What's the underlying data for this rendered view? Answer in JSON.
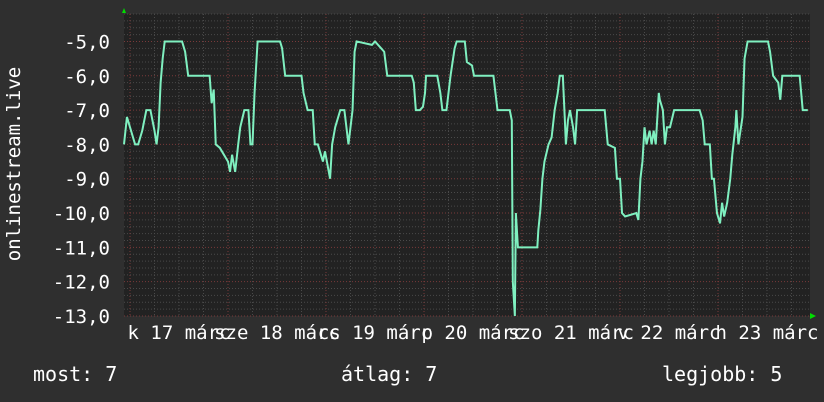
{
  "chart_data": {
    "type": "line",
    "ylabel": "onlinestream.live",
    "ylim": [
      -13.0,
      -4.2
    ],
    "xlim": [
      "16 22:30",
      "23 22:30"
    ],
    "yticks": [
      "-5,0",
      "-6,0",
      "-7,0",
      "-8,0",
      "-9,0",
      "-10,0",
      "-11,0",
      "-12,0",
      "-13,0"
    ],
    "ytick_values": [
      -5,
      -6,
      -7,
      -8,
      -9,
      -10,
      -11,
      -12,
      -13
    ],
    "xticks": [
      {
        "label": "k 17 márc",
        "day": "17 12:00"
      },
      {
        "label": "sze 18 márc",
        "day": "18 12:00"
      },
      {
        "label": "cs 19 márc",
        "day": "19 12:00"
      },
      {
        "label": "p 20 márc",
        "day": "20 12:00"
      },
      {
        "label": "szo 21 márc",
        "day": "21 12:00"
      },
      {
        "label": "v 22 márc",
        "day": "22 12:00"
      },
      {
        "label": "h 23 márc",
        "day": "23 12:00"
      }
    ],
    "grid": true,
    "line_color": "#7ff0c0",
    "series": [
      {
        "points": [
          [
            "16 22:30",
            -8
          ],
          [
            "16 23:15",
            -7.2
          ],
          [
            "17 00:00",
            -7.5
          ],
          [
            "17 01:15",
            -8
          ],
          [
            "17 02:00",
            -8
          ],
          [
            "17 03:00",
            -7.6
          ],
          [
            "17 04:00",
            -7
          ],
          [
            "17 05:00",
            -7
          ],
          [
            "17 06:00",
            -7.6
          ],
          [
            "17 06:30",
            -8
          ],
          [
            "17 07:00",
            -7.5
          ],
          [
            "17 07:30",
            -6.2
          ],
          [
            "17 08:00",
            -5.5
          ],
          [
            "17 08:30",
            -5
          ],
          [
            "17 12:45",
            -5
          ],
          [
            "17 13:30",
            -5.3
          ],
          [
            "17 14:15",
            -6
          ],
          [
            "17 19:30",
            -6
          ],
          [
            "17 20:00",
            -6.8
          ],
          [
            "17 20:30",
            -6.4
          ],
          [
            "17 21:00",
            -8
          ],
          [
            "17 22:00",
            -8.1
          ],
          [
            "18 00:00",
            -8.5
          ],
          [
            "18 00:30",
            -8.8
          ],
          [
            "18 01:00",
            -8.3
          ],
          [
            "18 01:45",
            -8.8
          ],
          [
            "18 02:30",
            -8
          ],
          [
            "18 03:00",
            -7.5
          ],
          [
            "18 04:00",
            -7
          ],
          [
            "18 05:00",
            -7
          ],
          [
            "18 05:30",
            -8
          ],
          [
            "18 06:00",
            -8
          ],
          [
            "18 06:30",
            -6.5
          ],
          [
            "18 07:15",
            -5
          ],
          [
            "18 12:45",
            -5
          ],
          [
            "18 13:15",
            -5.2
          ],
          [
            "18 14:00",
            -6
          ],
          [
            "18 18:00",
            -6
          ],
          [
            "18 18:30",
            -6.5
          ],
          [
            "18 19:30",
            -7
          ],
          [
            "18 20:45",
            -7
          ],
          [
            "18 21:15",
            -8
          ],
          [
            "18 22:00",
            -8
          ],
          [
            "18 23:15",
            -8.5
          ],
          [
            "18 23:45",
            -8.2
          ],
          [
            "19 01:00",
            -9
          ],
          [
            "19 01:30",
            -8
          ],
          [
            "19 02:15",
            -7.5
          ],
          [
            "19 03:30",
            -7
          ],
          [
            "19 04:30",
            -7
          ],
          [
            "19 05:30",
            -8
          ],
          [
            "19 06:30",
            -7
          ],
          [
            "19 07:00",
            -5.3
          ],
          [
            "19 07:30",
            -5
          ],
          [
            "19 11:15",
            -5.1
          ],
          [
            "19 12:00",
            -5
          ],
          [
            "19 14:15",
            -5.3
          ],
          [
            "19 15:00",
            -6
          ],
          [
            "19 21:00",
            -6
          ],
          [
            "19 21:30",
            -6.2
          ],
          [
            "19 22:00",
            -7
          ],
          [
            "19 23:00",
            -7
          ],
          [
            "19 23:45",
            -6.9
          ],
          [
            "20 00:15",
            -6.5
          ],
          [
            "20 00:30",
            -6
          ],
          [
            "20 03:15",
            -6
          ],
          [
            "20 04:00",
            -6.5
          ],
          [
            "20 04:30",
            -7
          ],
          [
            "20 05:30",
            -7
          ],
          [
            "20 06:00",
            -6.5
          ],
          [
            "20 06:30",
            -6
          ],
          [
            "20 07:30",
            -5.2
          ],
          [
            "20 08:00",
            -5
          ],
          [
            "20 10:00",
            -5
          ],
          [
            "20 10:30",
            -5.6
          ],
          [
            "20 11:45",
            -5.7
          ],
          [
            "20 12:15",
            -6
          ],
          [
            "20 17:00",
            -6
          ],
          [
            "20 17:30",
            -6.5
          ],
          [
            "20 18:00",
            -7
          ],
          [
            "20 21:00",
            -7
          ],
          [
            "20 21:30",
            -7.3
          ],
          [
            "20 21:45",
            -12
          ],
          [
            "20 22:15",
            -13
          ],
          [
            "20 22:30",
            -10
          ],
          [
            "20 23:00",
            -11
          ],
          [
            "21 03:45",
            -11
          ],
          [
            "21 04:00",
            -10.5
          ],
          [
            "21 04:30",
            -9.9
          ],
          [
            "21 05:00",
            -9
          ],
          [
            "21 05:30",
            -8.5
          ],
          [
            "21 06:30",
            -8
          ],
          [
            "21 07:15",
            -7.8
          ],
          [
            "21 08:00",
            -7
          ],
          [
            "21 08:45",
            -6.5
          ],
          [
            "21 09:15",
            -6
          ],
          [
            "21 10:00",
            -6
          ],
          [
            "21 10:30",
            -7.3
          ],
          [
            "21 10:45",
            -8
          ],
          [
            "21 11:15",
            -7.3
          ],
          [
            "21 11:45",
            -7
          ],
          [
            "21 12:30",
            -7.5
          ],
          [
            "21 13:00",
            -8
          ],
          [
            "21 13:30",
            -7
          ],
          [
            "21 20:15",
            -7
          ],
          [
            "21 21:00",
            -8
          ],
          [
            "21 22:45",
            -8.1
          ],
          [
            "21 23:15",
            -9
          ],
          [
            "22 00:00",
            -9
          ],
          [
            "22 00:30",
            -10
          ],
          [
            "22 01:15",
            -10.1
          ],
          [
            "22 04:00",
            -10
          ],
          [
            "22 04:30",
            -10.2
          ],
          [
            "22 05:00",
            -9
          ],
          [
            "22 05:30",
            -8.5
          ],
          [
            "22 06:00",
            -7.5
          ],
          [
            "22 06:30",
            -8
          ],
          [
            "22 07:15",
            -7.6
          ],
          [
            "22 07:45",
            -8
          ],
          [
            "22 08:15",
            -7.6
          ],
          [
            "22 08:45",
            -8
          ],
          [
            "22 09:15",
            -7
          ],
          [
            "22 09:30",
            -6.5
          ],
          [
            "22 09:45",
            -6.7
          ],
          [
            "22 10:30",
            -7
          ],
          [
            "22 11:00",
            -8
          ],
          [
            "22 11:30",
            -7.5
          ],
          [
            "22 12:15",
            -7.5
          ],
          [
            "22 13:15",
            -7
          ],
          [
            "22 19:30",
            -7
          ],
          [
            "22 20:15",
            -7.3
          ],
          [
            "22 20:45",
            -8
          ],
          [
            "22 22:00",
            -8
          ],
          [
            "22 22:30",
            -9
          ],
          [
            "22 23:00",
            -9
          ],
          [
            "22 23:45",
            -10
          ],
          [
            "23 00:30",
            -10.3
          ],
          [
            "23 01:00",
            -9.7
          ],
          [
            "23 01:30",
            -10.1
          ],
          [
            "23 02:15",
            -9.7
          ],
          [
            "23 03:00",
            -9
          ],
          [
            "23 03:30",
            -8.3
          ],
          [
            "23 04:15",
            -7.5
          ],
          [
            "23 04:30",
            -7
          ],
          [
            "23 05:00",
            -8
          ],
          [
            "23 06:00",
            -7.2
          ],
          [
            "23 06:30",
            -5.5
          ],
          [
            "23 07:15",
            -5
          ],
          [
            "23 12:15",
            -5
          ],
          [
            "23 12:45",
            -5.3
          ],
          [
            "23 13:30",
            -6
          ],
          [
            "23 14:45",
            -6.2
          ],
          [
            "23 15:15",
            -6.7
          ],
          [
            "23 15:45",
            -6
          ],
          [
            "23 20:00",
            -6
          ],
          [
            "23 20:45",
            -7
          ],
          [
            "23 22:00",
            -7
          ]
        ]
      }
    ]
  },
  "footer": {
    "current": "most: 7",
    "average": "átlag: 7",
    "best": "legjobb: 5"
  }
}
